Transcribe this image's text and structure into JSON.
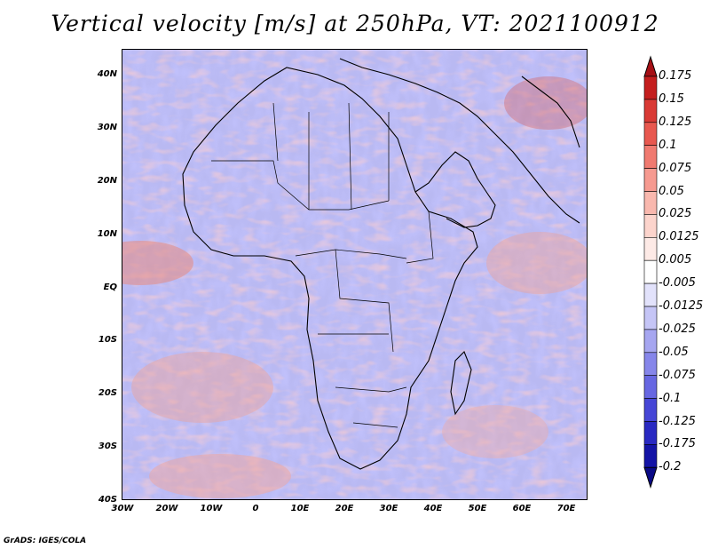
{
  "title": "Vertical velocity [m/s] at 250hPa, VT: 2021100912",
  "credit": "GrADS: IGES/COLA",
  "map": {
    "lat_labels": [
      "40N",
      "30N",
      "20N",
      "10N",
      "EQ",
      "10S",
      "20S",
      "30S",
      "40S"
    ],
    "lon_labels": [
      "30W",
      "20W",
      "10W",
      "0",
      "10E",
      "20E",
      "30E",
      "40E",
      "50E",
      "60E",
      "70E"
    ],
    "lat_range": [
      -40,
      45
    ],
    "lon_range": [
      -30,
      75
    ]
  },
  "colorbar": {
    "labels": [
      "0.175",
      "0.15",
      "0.125",
      "0.1",
      "0.075",
      "0.05",
      "0.025",
      "0.0125",
      "0.005",
      "-0.005",
      "-0.0125",
      "-0.025",
      "-0.05",
      "-0.075",
      "-0.1",
      "-0.125",
      "-0.175",
      "-0.2"
    ],
    "colors": [
      "#a50f15",
      "#c41e1e",
      "#d93a35",
      "#e8584f",
      "#f07a70",
      "#f69a90",
      "#f9b8ae",
      "#fcd4cc",
      "#fdeae6",
      "#ffffff",
      "#e2e2fb",
      "#c5c5f6",
      "#a6a6f0",
      "#8686ea",
      "#6767e2",
      "#4646d6",
      "#2929c2",
      "#1414a6",
      "#0a0a86"
    ]
  }
}
